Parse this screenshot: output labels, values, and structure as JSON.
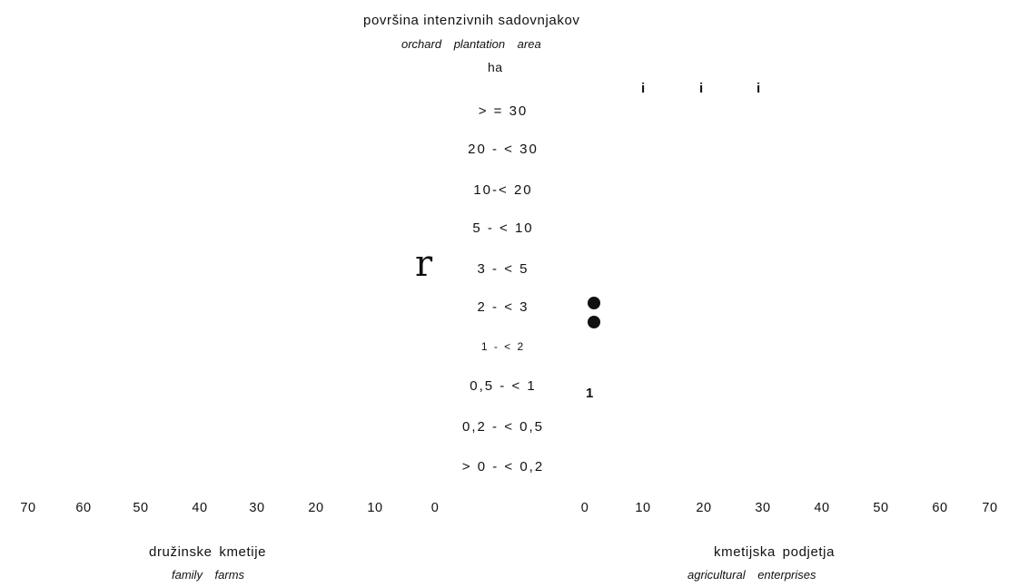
{
  "chart_data": {
    "type": "bar",
    "orientation": "horizontal-population-pyramid",
    "title": "površina intenzivnih sadovnjakov",
    "subtitle": "orchard plantation area",
    "unit": "ha",
    "categories": [
      "> = 30",
      "20 - < 30",
      "10-< 20",
      "5 - < 10",
      "3 - < 5",
      "2 - < 3",
      "1 - < 2",
      "0,5 - < 1",
      "0,2 - < 0,5",
      "> 0 - < 0,2"
    ],
    "left_axis": {
      "label": "družinske kmetije",
      "label_en": "family farms",
      "ticks": [
        "70",
        "60",
        "50",
        "40",
        "30",
        "20",
        "10",
        "0"
      ],
      "range": [
        0,
        70
      ]
    },
    "right_axis": {
      "label": "kmetijska podjetja",
      "label_en": "agricultural enterprises",
      "ticks": [
        "0",
        "10",
        "20",
        "30",
        "40",
        "50",
        "60",
        "70"
      ],
      "range": [
        0,
        70
      ]
    },
    "series": [
      {
        "name": "družinske kmetije",
        "values": [
          0,
          0,
          0,
          0,
          0,
          0,
          0,
          0,
          0,
          0
        ]
      },
      {
        "name": "kmetijska podjetja",
        "values": [
          0,
          0,
          0,
          0,
          0,
          0.5,
          0,
          0,
          0,
          0
        ]
      }
    ],
    "annotations": {
      "r": "r",
      "i": [
        "i",
        "i",
        "i"
      ],
      "one": "1"
    }
  }
}
